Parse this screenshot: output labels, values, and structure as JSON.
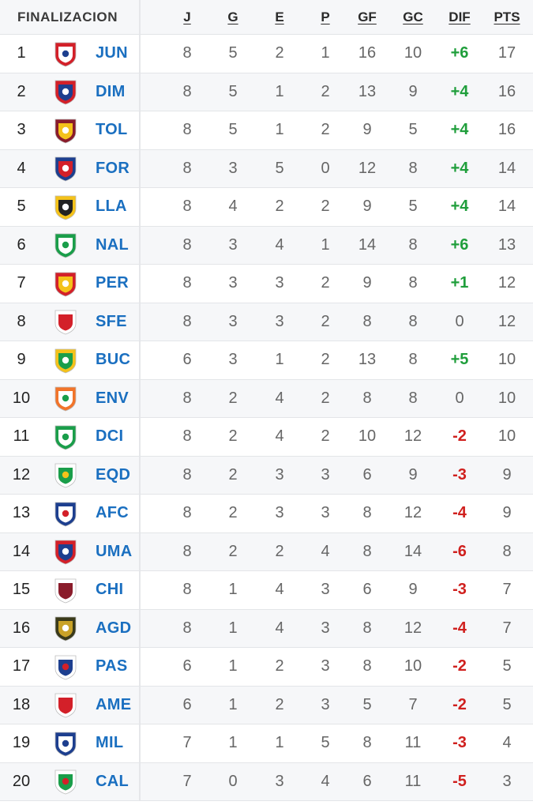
{
  "header": {
    "title": "FINALIZACION",
    "columns": {
      "j": "J",
      "g": "G",
      "e": "E",
      "p": "P",
      "gf": "GF",
      "gc": "GC",
      "dif": "DIF",
      "pts": "PTS"
    }
  },
  "rows": [
    {
      "pos": "1",
      "abbr": "JUN",
      "crest": "junior-crest-icon",
      "j": "8",
      "g": "5",
      "e": "2",
      "p": "1",
      "gf": "16",
      "gc": "10",
      "dif": "+6",
      "pts": "17"
    },
    {
      "pos": "2",
      "abbr": "DIM",
      "crest": "medellin-crest-icon",
      "j": "8",
      "g": "5",
      "e": "1",
      "p": "2",
      "gf": "13",
      "gc": "9",
      "dif": "+4",
      "pts": "16"
    },
    {
      "pos": "3",
      "abbr": "TOL",
      "crest": "tolima-crest-icon",
      "j": "8",
      "g": "5",
      "e": "1",
      "p": "2",
      "gf": "9",
      "gc": "5",
      "dif": "+4",
      "pts": "16"
    },
    {
      "pos": "4",
      "abbr": "FOR",
      "crest": "fortaleza-crest-icon",
      "j": "8",
      "g": "3",
      "e": "5",
      "p": "0",
      "gf": "12",
      "gc": "8",
      "dif": "+4",
      "pts": "14"
    },
    {
      "pos": "5",
      "abbr": "LLA",
      "crest": "llaneros-crest-icon",
      "j": "8",
      "g": "4",
      "e": "2",
      "p": "2",
      "gf": "9",
      "gc": "5",
      "dif": "+4",
      "pts": "14"
    },
    {
      "pos": "6",
      "abbr": "NAL",
      "crest": "nacional-crest-icon",
      "j": "8",
      "g": "3",
      "e": "4",
      "p": "1",
      "gf": "14",
      "gc": "8",
      "dif": "+6",
      "pts": "13"
    },
    {
      "pos": "7",
      "abbr": "PER",
      "crest": "pereira-crest-icon",
      "j": "8",
      "g": "3",
      "e": "3",
      "p": "2",
      "gf": "9",
      "gc": "8",
      "dif": "+1",
      "pts": "12"
    },
    {
      "pos": "8",
      "abbr": "SFE",
      "crest": "santa-fe-crest-icon",
      "j": "8",
      "g": "3",
      "e": "3",
      "p": "2",
      "gf": "8",
      "gc": "8",
      "dif": "0",
      "pts": "12"
    },
    {
      "pos": "9",
      "abbr": "BUC",
      "crest": "bucaramanga-crest-icon",
      "j": "6",
      "g": "3",
      "e": "1",
      "p": "2",
      "gf": "13",
      "gc": "8",
      "dif": "+5",
      "pts": "10"
    },
    {
      "pos": "10",
      "abbr": "ENV",
      "crest": "envigado-crest-icon",
      "j": "8",
      "g": "2",
      "e": "4",
      "p": "2",
      "gf": "8",
      "gc": "8",
      "dif": "0",
      "pts": "10"
    },
    {
      "pos": "11",
      "abbr": "DCI",
      "crest": "deportivo-cali-crest-icon",
      "j": "8",
      "g": "2",
      "e": "4",
      "p": "2",
      "gf": "10",
      "gc": "12",
      "dif": "-2",
      "pts": "10"
    },
    {
      "pos": "12",
      "abbr": "EQD",
      "crest": "equidad-crest-icon",
      "j": "8",
      "g": "2",
      "e": "3",
      "p": "3",
      "gf": "6",
      "gc": "9",
      "dif": "-3",
      "pts": "9"
    },
    {
      "pos": "13",
      "abbr": "AFC",
      "crest": "alianza-crest-icon",
      "j": "8",
      "g": "2",
      "e": "3",
      "p": "3",
      "gf": "8",
      "gc": "12",
      "dif": "-4",
      "pts": "9"
    },
    {
      "pos": "14",
      "abbr": "UMA",
      "crest": "union-magdalena-crest-icon",
      "j": "8",
      "g": "2",
      "e": "2",
      "p": "4",
      "gf": "8",
      "gc": "14",
      "dif": "-6",
      "pts": "8"
    },
    {
      "pos": "15",
      "abbr": "CHI",
      "crest": "chico-crest-icon",
      "j": "8",
      "g": "1",
      "e": "4",
      "p": "3",
      "gf": "6",
      "gc": "9",
      "dif": "-3",
      "pts": "7"
    },
    {
      "pos": "16",
      "abbr": "AGD",
      "crest": "aguilas-doradas-crest-icon",
      "j": "8",
      "g": "1",
      "e": "4",
      "p": "3",
      "gf": "8",
      "gc": "12",
      "dif": "-4",
      "pts": "7"
    },
    {
      "pos": "17",
      "abbr": "PAS",
      "crest": "pasto-crest-icon",
      "j": "6",
      "g": "1",
      "e": "2",
      "p": "3",
      "gf": "8",
      "gc": "10",
      "dif": "-2",
      "pts": "5"
    },
    {
      "pos": "18",
      "abbr": "AME",
      "crest": "america-crest-icon",
      "j": "6",
      "g": "1",
      "e": "2",
      "p": "3",
      "gf": "5",
      "gc": "7",
      "dif": "-2",
      "pts": "5"
    },
    {
      "pos": "19",
      "abbr": "MIL",
      "crest": "millonarios-crest-icon",
      "j": "7",
      "g": "1",
      "e": "1",
      "p": "5",
      "gf": "8",
      "gc": "11",
      "dif": "-3",
      "pts": "4"
    },
    {
      "pos": "20",
      "abbr": "CAL",
      "crest": "once-caldas-crest-icon",
      "j": "7",
      "g": "0",
      "e": "3",
      "p": "4",
      "gf": "6",
      "gc": "11",
      "dif": "-5",
      "pts": "3"
    }
  ],
  "colors": {
    "team_link": "#1a6fc0",
    "dif_positive": "#1f9e3b",
    "dif_negative": "#d0201e",
    "row_alt": "#f6f7f9",
    "crests": {
      "JUN": [
        "#d32029",
        "#ffffff",
        "#1d3f8f"
      ],
      "DIM": [
        "#d32029",
        "#1d3f8f",
        "#ffffff"
      ],
      "TOL": [
        "#8a1c2b",
        "#f4c21a",
        "#ffffff"
      ],
      "FOR": [
        "#1d3f8f",
        "#d32029",
        "#ffffff"
      ],
      "LLA": [
        "#f4c21a",
        "#222222",
        "#ffffff"
      ],
      "NAL": [
        "#1a9e4a",
        "#ffffff",
        "#1a9e4a"
      ],
      "PER": [
        "#d32029",
        "#f4c21a",
        "#ffffff"
      ],
      "SFE": [
        "#ffffff",
        "#d32029",
        "#d32029"
      ],
      "BUC": [
        "#f4c21a",
        "#1a9e4a",
        "#ffffff"
      ],
      "ENV": [
        "#f2742a",
        "#ffffff",
        "#1a9e4a"
      ],
      "DCI": [
        "#1a9e4a",
        "#ffffff",
        "#1a9e4a"
      ],
      "EQD": [
        "#ffffff",
        "#1a9e4a",
        "#f4c21a"
      ],
      "AFC": [
        "#1d3f8f",
        "#ffffff",
        "#d32029"
      ],
      "UMA": [
        "#d32029",
        "#1d3f8f",
        "#ffffff"
      ],
      "CHI": [
        "#ffffff",
        "#8a1c2b",
        "#8a1c2b"
      ],
      "AGD": [
        "#3a3a1a",
        "#c9a227",
        "#ffffff"
      ],
      "PAS": [
        "#ffffff",
        "#1d3f8f",
        "#d32029"
      ],
      "AME": [
        "#ffffff",
        "#d32029",
        "#d32029"
      ],
      "MIL": [
        "#1d3f8f",
        "#ffffff",
        "#1d3f8f"
      ],
      "CAL": [
        "#ffffff",
        "#1a9e4a",
        "#d32029"
      ]
    }
  }
}
